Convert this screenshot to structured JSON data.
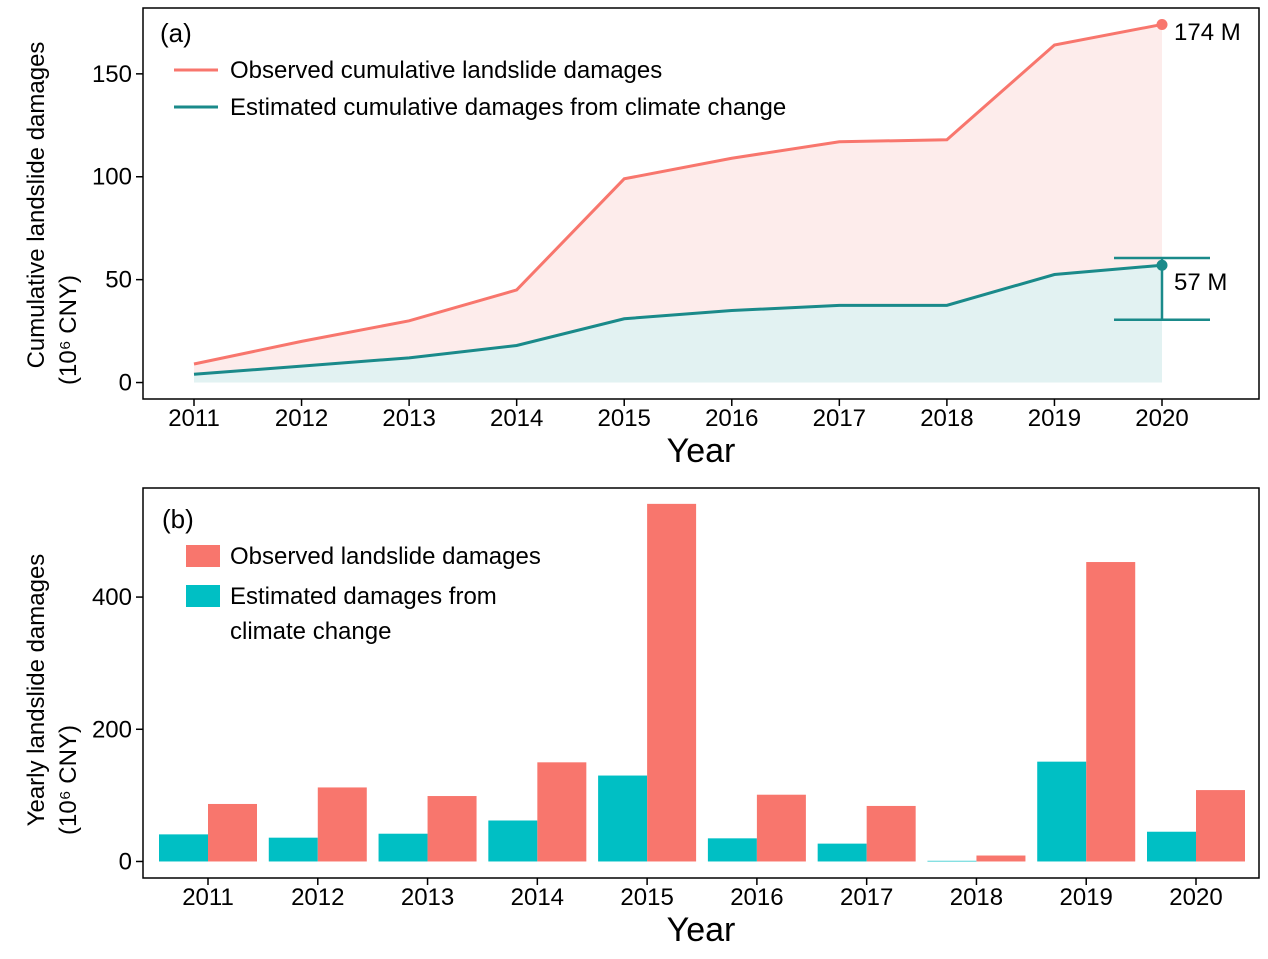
{
  "colors": {
    "observed": "#F8766D",
    "estimated": "#00BFC4",
    "estimated_line": "#1A8A8A",
    "observed_fill": "#FDECEB",
    "estimated_fill": "#E2F2F2"
  },
  "chart_data": [
    {
      "type": "area",
      "panel_label": "(a)",
      "x": [
        2011,
        2012,
        2013,
        2014,
        2015,
        2016,
        2017,
        2018,
        2019,
        2020
      ],
      "x_tick_labels": [
        "2011",
        "2012",
        "2013",
        "2014",
        "2015",
        "2016",
        "2017",
        "2018",
        "2019",
        "2020"
      ],
      "series": [
        {
          "name": "Observed cumulative landslide damages",
          "values": [
            9,
            20,
            30,
            45,
            99,
            109,
            117,
            118,
            164,
            174
          ]
        },
        {
          "name": "Estimated cumulative damages from climate change",
          "values": [
            4,
            8,
            12,
            18,
            31,
            35,
            37.5,
            37.5,
            52.5,
            57
          ]
        }
      ],
      "ylim": [
        -8,
        182
      ],
      "y_ticks": [
        0,
        50,
        100,
        150
      ],
      "y_tick_labels": [
        "0",
        "50",
        "100",
        "150"
      ],
      "ylabel_line1": "Cumulative landslide damages",
      "ylabel_line2": "(10⁶ CNY)",
      "xlabel": "Year",
      "error_bar": {
        "upper": 60.5,
        "lower": 30.5
      },
      "annotations": {
        "observed_end": "174 M",
        "estimated_end": "57 M"
      },
      "legend_position": "top-left"
    },
    {
      "type": "bar",
      "panel_label": "(b)",
      "categories": [
        "2011",
        "2012",
        "2013",
        "2014",
        "2015",
        "2016",
        "2017",
        "2018",
        "2019",
        "2020"
      ],
      "series": [
        {
          "name": "Estimated damages from climate change",
          "legend_line1": "Estimated damages from",
          "legend_line2": "climate change",
          "values": [
            41,
            36,
            42,
            62,
            130,
            35,
            27,
            1,
            151,
            45
          ]
        },
        {
          "name": "Observed landslide damages",
          "values": [
            87,
            112,
            99,
            150,
            541,
            101,
            84,
            9,
            453,
            108
          ]
        }
      ],
      "ylim": [
        -25,
        565
      ],
      "y_ticks": [
        0,
        200,
        400
      ],
      "y_tick_labels": [
        "0",
        "200",
        "400"
      ],
      "ylabel_line1": "Yearly landslide damages",
      "ylabel_line2": "(10⁶ CNY)",
      "xlabel": "Year",
      "legend_position": "top-left"
    }
  ]
}
